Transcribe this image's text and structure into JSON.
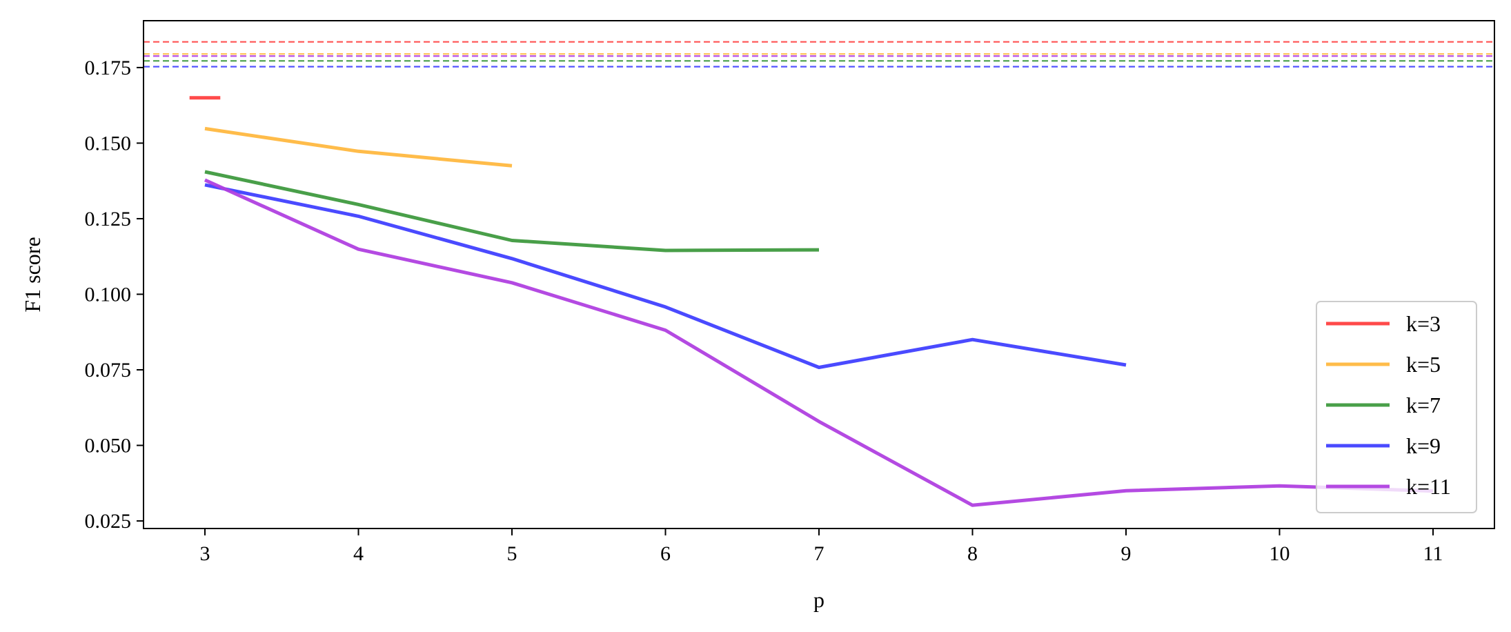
{
  "chart_data": {
    "type": "line",
    "title": "",
    "xlabel": "p",
    "ylabel": "F1 score",
    "xlim": [
      2.6,
      11.4
    ],
    "ylim": [
      0.0225,
      0.1905
    ],
    "xticks": [
      3,
      4,
      5,
      6,
      7,
      8,
      9,
      10,
      11
    ],
    "xtick_labels": [
      "3",
      "4",
      "5",
      "6",
      "7",
      "8",
      "9",
      "10",
      "11"
    ],
    "yticks": [
      0.025,
      0.05,
      0.075,
      0.1,
      0.125,
      0.15,
      0.175
    ],
    "ytick_labels": [
      "0.025",
      "0.050",
      "0.075",
      "0.100",
      "0.125",
      "0.150",
      "0.175"
    ],
    "grid": false,
    "legend_position": "lower-right",
    "series": [
      {
        "name": "k=3",
        "color": "#ff4040",
        "x": [
          2.9,
          3.1
        ],
        "values": [
          0.165,
          0.165
        ],
        "baseline": 0.1835
      },
      {
        "name": "k=5",
        "color": "#ffb840",
        "x": [
          3,
          4,
          5
        ],
        "values": [
          0.1548,
          0.1473,
          0.1425
        ],
        "baseline": 0.1795
      },
      {
        "name": "k=7",
        "color": "#3f9a3f",
        "x": [
          3,
          4,
          5,
          6,
          7
        ],
        "values": [
          0.1405,
          0.1297,
          0.1178,
          0.1145,
          0.1147
        ],
        "baseline": 0.1772
      },
      {
        "name": "k=9",
        "color": "#4040ff",
        "x": [
          3,
          4,
          5,
          6,
          7,
          8,
          9
        ],
        "values": [
          0.1362,
          0.1258,
          0.1118,
          0.0958,
          0.0758,
          0.085,
          0.0766
        ],
        "baseline": 0.1753
      },
      {
        "name": "k=11",
        "color": "#b040e0",
        "x": [
          3,
          4,
          5,
          6,
          7,
          8,
          9,
          10,
          11
        ],
        "values": [
          0.1378,
          0.1149,
          0.1038,
          0.0881,
          0.0579,
          0.0302,
          0.035,
          0.0366,
          0.0349
        ],
        "baseline": 0.1788
      }
    ]
  }
}
